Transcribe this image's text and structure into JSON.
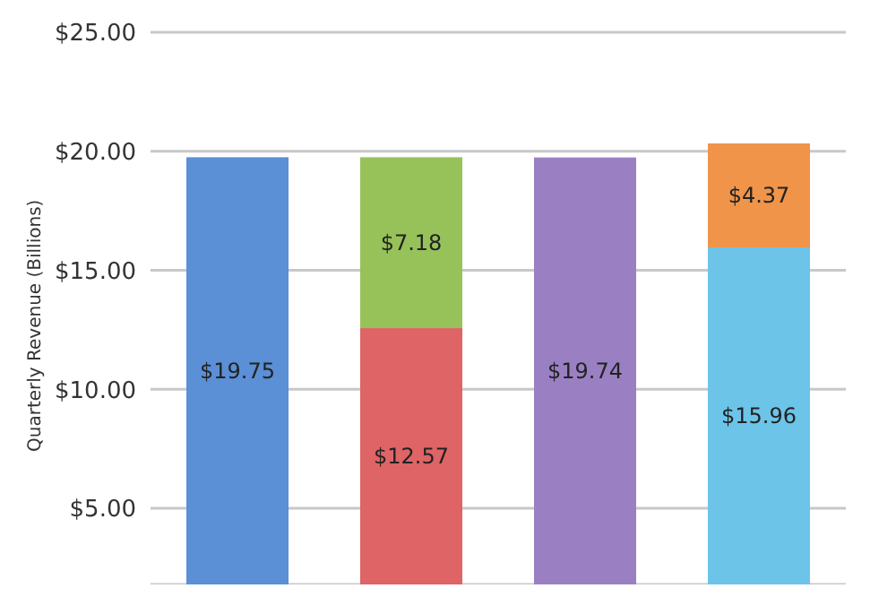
{
  "chart_data": {
    "type": "bar",
    "stacked": true,
    "ylabel": "Quarterly Revenue (Billions)",
    "categories": [
      null,
      null,
      null,
      null
    ],
    "series": [
      {
        "colors": [
          "#5b8fd6",
          "#de6466",
          "#9a80c3",
          "#6cc4e8"
        ],
        "values": [
          19.75,
          12.57,
          19.74,
          15.96
        ],
        "value_labels": [
          "$19.75",
          "$12.57",
          "$19.74",
          "$15.96"
        ]
      },
      {
        "colors": [
          null,
          "#97c25a",
          null,
          "#f0944a"
        ],
        "values": [
          null,
          7.18,
          null,
          4.37
        ],
        "value_labels": [
          null,
          "$7.18",
          null,
          "$4.37"
        ]
      }
    ],
    "ylim": [
      1.8,
      25
    ],
    "yticks": [
      {
        "value": 5,
        "label": "$5.00"
      },
      {
        "value": 10,
        "label": "$10.00"
      },
      {
        "value": 15,
        "label": "$15.00"
      },
      {
        "value": 20,
        "label": "$20.00"
      },
      {
        "value": 25,
        "label": "$25.00"
      }
    ],
    "grid": "y",
    "legend": false
  }
}
